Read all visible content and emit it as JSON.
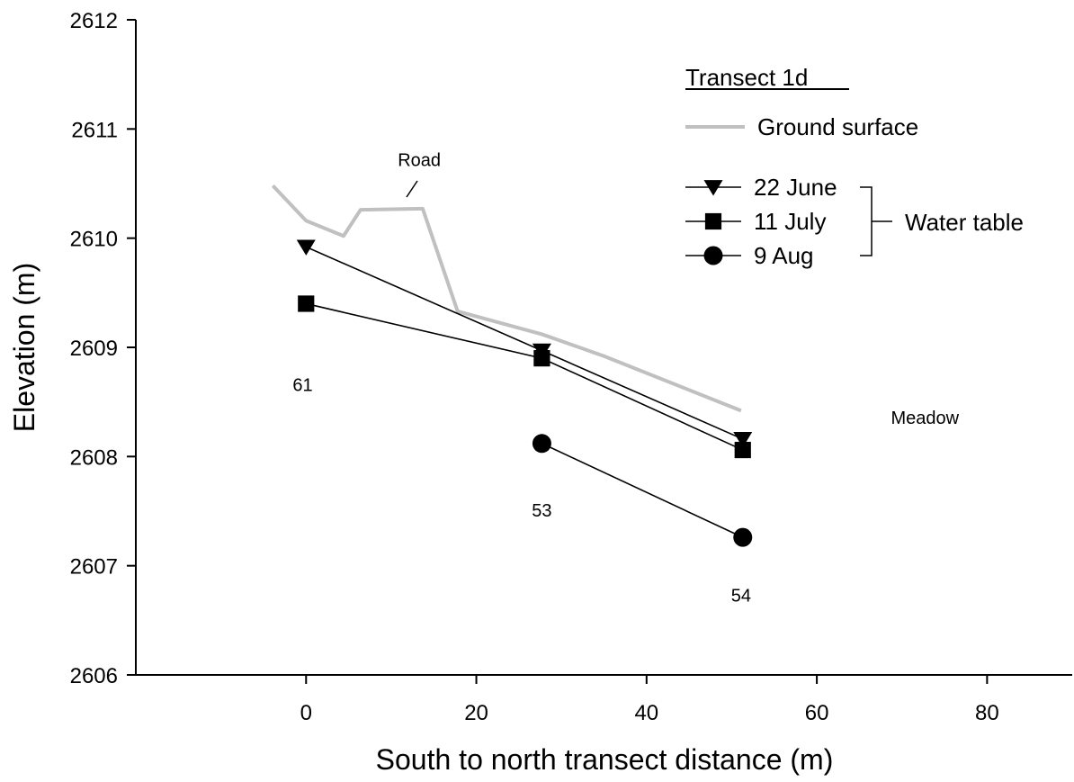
{
  "chart_data": {
    "type": "line",
    "xlabel": "South to north transect distance (m)",
    "ylabel": "Elevation (m)",
    "xlim": [
      -20,
      90
    ],
    "ylim": [
      2606,
      2612
    ],
    "xticks": [
      0,
      20,
      40,
      60,
      80
    ],
    "yticks": [
      2606,
      2607,
      2608,
      2609,
      2610,
      2611,
      2612
    ],
    "grid": false,
    "legend": {
      "title": "Transect 1d",
      "placement": "top-right",
      "group_label": "Water table"
    },
    "ground_surface": {
      "name": "Ground surface",
      "color": "#c0c0c0",
      "points": [
        [
          -3.9,
          2610.48
        ],
        [
          0,
          2610.16
        ],
        [
          4.4,
          2610.02
        ],
        [
          6.4,
          2610.26
        ],
        [
          13.7,
          2610.27
        ],
        [
          17.8,
          2609.33
        ],
        [
          27.7,
          2609.12
        ],
        [
          35.0,
          2608.92
        ],
        [
          51.1,
          2608.42
        ]
      ]
    },
    "series": [
      {
        "name": "22 June",
        "marker": "triangle-down",
        "x": [
          0,
          27.7,
          51.3
        ],
        "y": [
          2609.92,
          2608.97,
          2608.16
        ]
      },
      {
        "name": "11 July",
        "marker": "square",
        "x": [
          0,
          27.7,
          51.3
        ],
        "y": [
          2609.4,
          2608.9,
          2608.06
        ]
      },
      {
        "name": "9 Aug",
        "marker": "circle",
        "x": [
          27.7,
          51.3
        ],
        "y": [
          2608.12,
          2607.26
        ]
      }
    ],
    "annotations": [
      {
        "text": "Road",
        "x": 13.3,
        "y": 2610.66
      },
      {
        "text": "61",
        "x": -0.4,
        "y": 2608.6
      },
      {
        "text": "53",
        "x": 27.7,
        "y": 2607.45
      },
      {
        "text": "54",
        "x": 51.1,
        "y": 2606.67
      },
      {
        "text": "Meadow",
        "x": 72.7,
        "y": 2608.3
      }
    ]
  }
}
